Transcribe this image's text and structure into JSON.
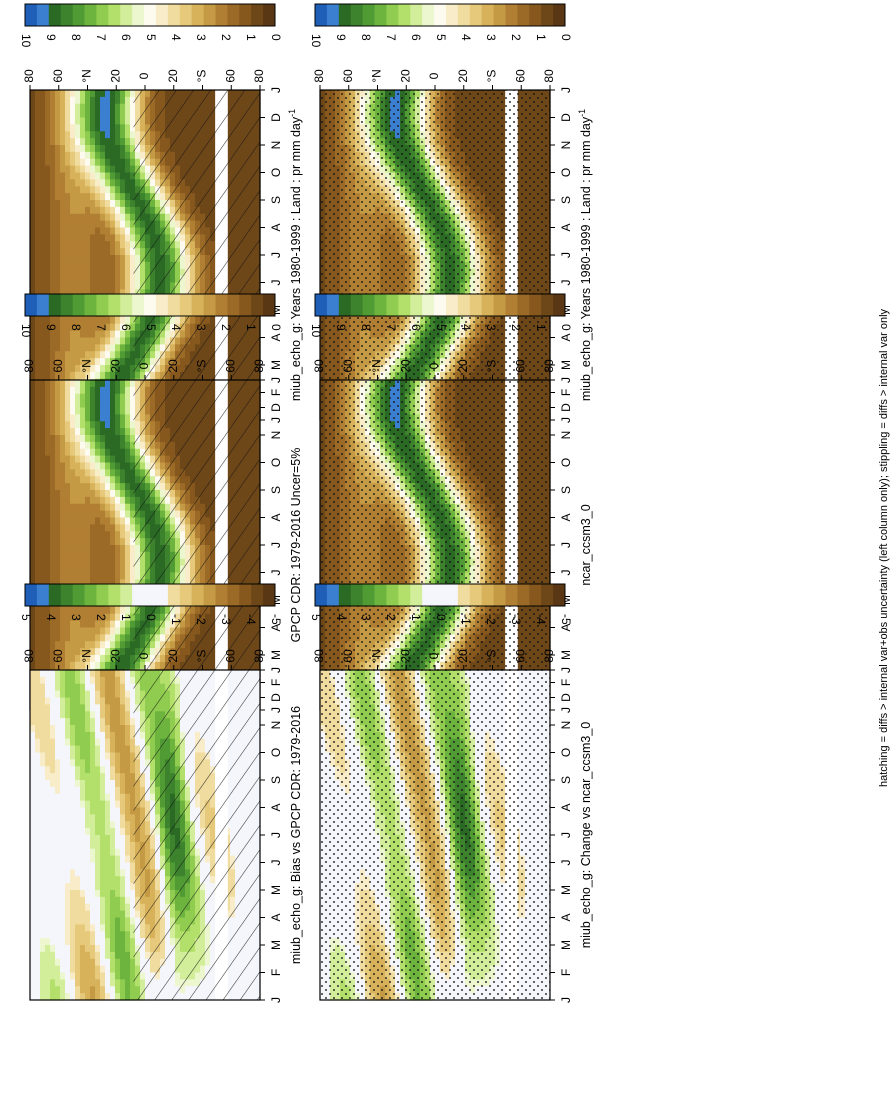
{
  "figure_caption": "hatching = diffs > internal var+obs uncertainty (left column only); stippling = diffs > internal var only",
  "month_labels": [
    "J",
    "F",
    "M",
    "A",
    "M",
    "J",
    "J",
    "A",
    "S",
    "O",
    "N",
    "D",
    "J"
  ],
  "latitude_labels": [
    "80",
    "60",
    "°N",
    "20",
    "0",
    "20",
    "°S",
    "60",
    "80"
  ],
  "chart_data": [
    {
      "type": "heatmap",
      "title": "miub_echo_g: Years 1980-1999 : Land : pr mm day",
      "title_superscript": "-1",
      "x": [
        "J",
        "F",
        "M",
        "A",
        "M",
        "J",
        "J",
        "A",
        "S",
        "O",
        "N",
        "D",
        "J"
      ],
      "y_ticks": [
        "80",
        "60",
        "°N",
        "20",
        "0",
        "20",
        "°S",
        "60",
        "80"
      ],
      "colorbar_ticks": [
        "10",
        "9",
        "8",
        "7",
        "6",
        "5",
        "4",
        "3",
        "2",
        "1",
        "0"
      ],
      "colorbar_range": [
        0,
        10
      ],
      "pattern": "hatch",
      "row": 0,
      "col": 0
    },
    {
      "type": "heatmap",
      "title": "miub_echo_g: Years 1980-1999 : Land : pr mm day",
      "title_superscript": "-1",
      "x": [
        "J",
        "F",
        "M",
        "A",
        "M",
        "J",
        "J",
        "A",
        "S",
        "O",
        "N",
        "D",
        "J"
      ],
      "y_ticks": [
        "80",
        "60",
        "°N",
        "20",
        "0",
        "20",
        "°S",
        "60",
        "80"
      ],
      "colorbar_ticks": [
        "10",
        "9",
        "8",
        "7",
        "6",
        "5",
        "4",
        "3",
        "2",
        "1",
        "0"
      ],
      "colorbar_range": [
        0,
        10
      ],
      "pattern": "stipple",
      "row": 0,
      "col": 1
    },
    {
      "type": "heatmap",
      "title": "GPCP CDR: 1979-2016 Uncer=5%",
      "title_superscript": "",
      "x": [
        "J",
        "F",
        "M",
        "A",
        "M",
        "J",
        "J",
        "A",
        "S",
        "O",
        "N",
        "D",
        "J"
      ],
      "y_ticks": [
        "80",
        "60",
        "°N",
        "20",
        "0",
        "20",
        "°S",
        "60",
        "80"
      ],
      "colorbar_ticks": [
        "10",
        "9",
        "8",
        "7",
        "6",
        "5",
        "4",
        "3",
        "2",
        "1",
        "0"
      ],
      "colorbar_range": [
        0,
        10
      ],
      "pattern": "hatch",
      "row": 1,
      "col": 0
    },
    {
      "type": "heatmap",
      "title": "ncar_ccsm3_0",
      "title_superscript": "",
      "x": [
        "J",
        "F",
        "M",
        "A",
        "M",
        "J",
        "J",
        "A",
        "S",
        "O",
        "N",
        "D",
        "J"
      ],
      "y_ticks": [
        "80",
        "60",
        "°N",
        "20",
        "0",
        "20",
        "°S",
        "60",
        "80"
      ],
      "colorbar_ticks": [
        "10",
        "9",
        "8",
        "7",
        "6",
        "5",
        "4",
        "3",
        "2",
        "1",
        "0"
      ],
      "colorbar_range": [
        0,
        10
      ],
      "pattern": "stipple",
      "row": 1,
      "col": 1
    },
    {
      "type": "heatmap",
      "title": "miub_echo_g: Bias vs GPCP CDR: 1979-2016",
      "title_superscript": "",
      "x": [
        "J",
        "F",
        "M",
        "A",
        "M",
        "J",
        "J",
        "A",
        "S",
        "O",
        "N",
        "D",
        "J"
      ],
      "y_ticks": [
        "80",
        "60",
        "°N",
        "20",
        "0",
        "20",
        "°S",
        "60",
        "80"
      ],
      "colorbar_ticks": [
        "5",
        "4",
        "3",
        "2",
        "1",
        "0",
        "-1",
        "-2",
        "-3",
        "-4",
        "-5"
      ],
      "colorbar_range": [
        -5,
        5
      ],
      "pattern": "hatch",
      "row": 2,
      "col": 0
    },
    {
      "type": "heatmap",
      "title": "miub_echo_g: Change vs ncar_ccsm3_0",
      "title_superscript": "",
      "x": [
        "J",
        "F",
        "M",
        "A",
        "M",
        "J",
        "J",
        "A",
        "S",
        "O",
        "N",
        "D",
        "J"
      ],
      "y_ticks": [
        "80",
        "60",
        "°N",
        "20",
        "0",
        "20",
        "°S",
        "60",
        "80"
      ],
      "colorbar_ticks": [
        "5",
        "4",
        "3",
        "2",
        "1",
        "0",
        "-1",
        "-2",
        "-3",
        "-4",
        "-5"
      ],
      "colorbar_range": [
        -5,
        5
      ],
      "pattern": "stipple",
      "row": 2,
      "col": 1
    }
  ],
  "colors": {
    "precip_scale": [
      "#5a3714",
      "#6e4719",
      "#86581e",
      "#9b6a27",
      "#b17f33",
      "#c59a45",
      "#d7b25a",
      "#e6c97a",
      "#f1dca0",
      "#f8ecc9",
      "#fdfaf0",
      "#ecf7cf",
      "#d2ee9a",
      "#b2e06a",
      "#8fcc4f",
      "#6db43f",
      "#519b35",
      "#3d822d",
      "#2a6a25",
      "#3a7fd0",
      "#1f5fb8"
    ],
    "diff_neutral": "#f4f6fb"
  }
}
